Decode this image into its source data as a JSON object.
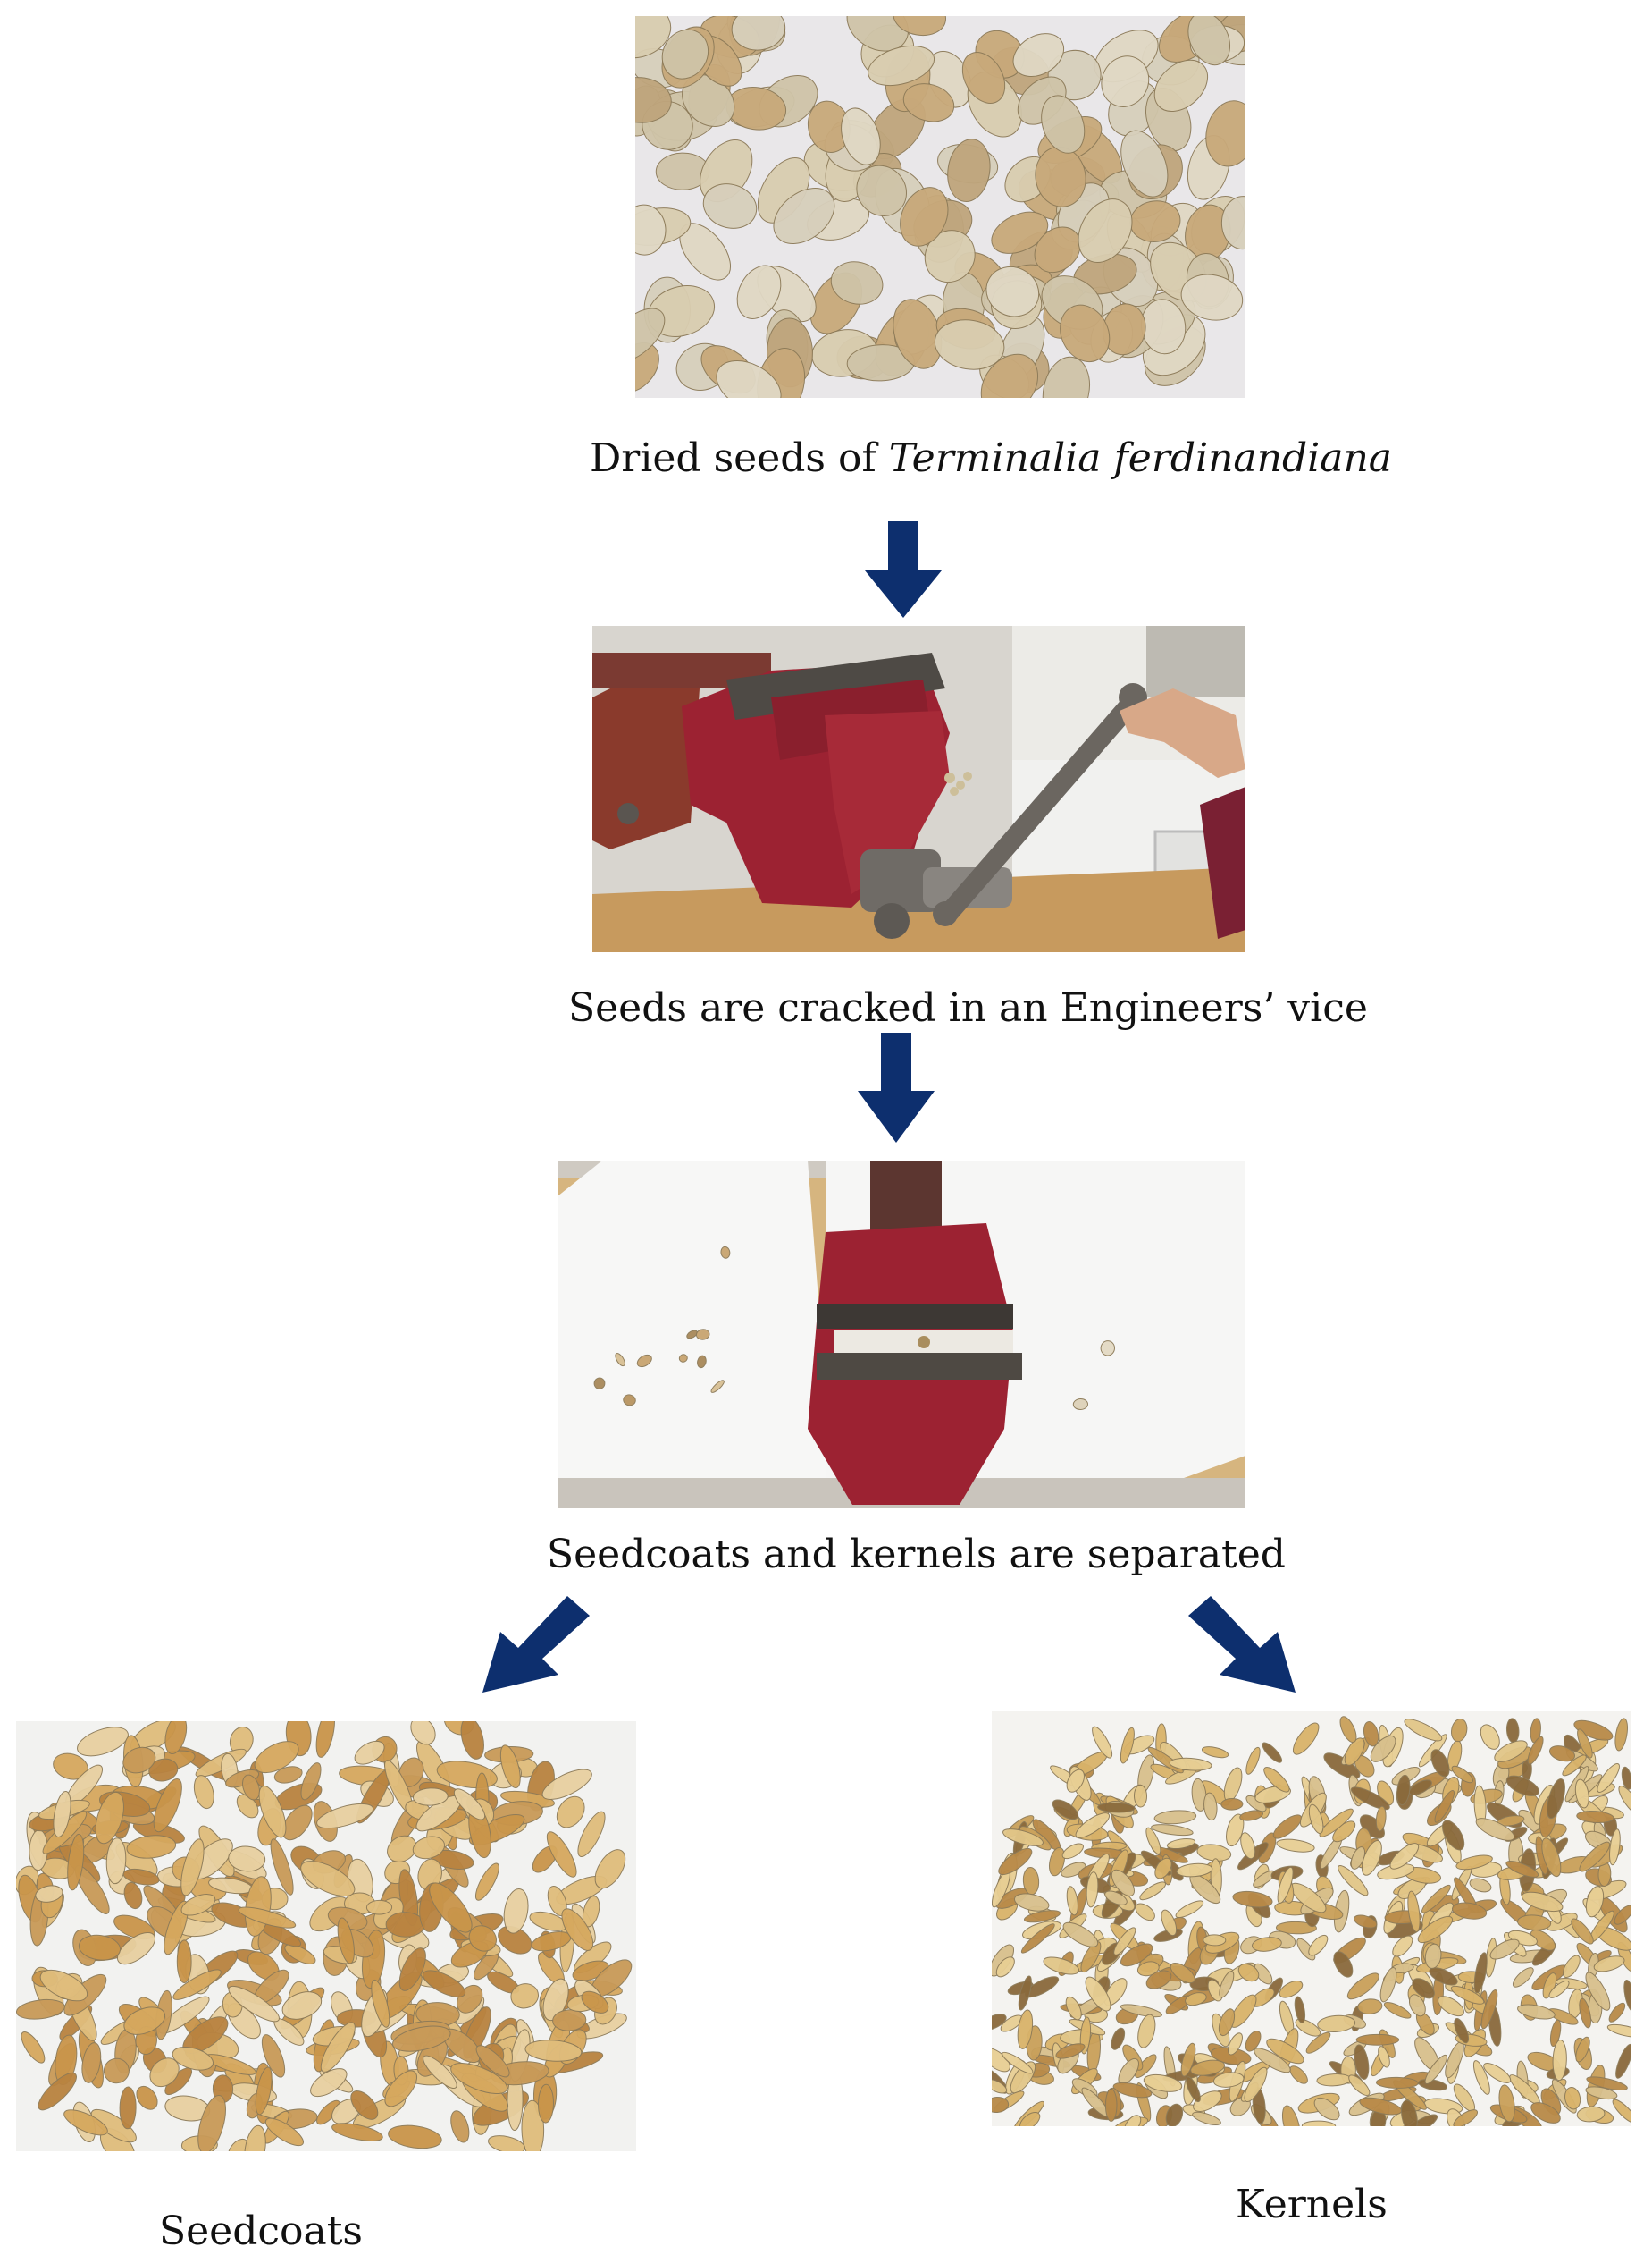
{
  "steps": [
    {
      "caption_main": "Dried seeds of ",
      "caption_italic": "Terminalia ferdinandiana",
      "photo_icon": "dried-seeds-photo"
    },
    {
      "caption_main": "Seeds are cracked in an Engineers’ vice",
      "photo_icon": "vice-cracking-photo"
    },
    {
      "caption_main": "Seedcoats and kernels are separated",
      "photo_icon": "separated-pile-photo"
    }
  ],
  "outputs": [
    {
      "caption": "Seedcoats",
      "photo_icon": "seedcoats-photo"
    },
    {
      "caption": "Kernels",
      "photo_icon": "kernels-photo"
    }
  ],
  "colors": {
    "arrow": "#0d2f6e",
    "vice_red": "#9c2232",
    "seed_beige": "#d9cdb0",
    "kernel_gold": "#c9a05a"
  }
}
